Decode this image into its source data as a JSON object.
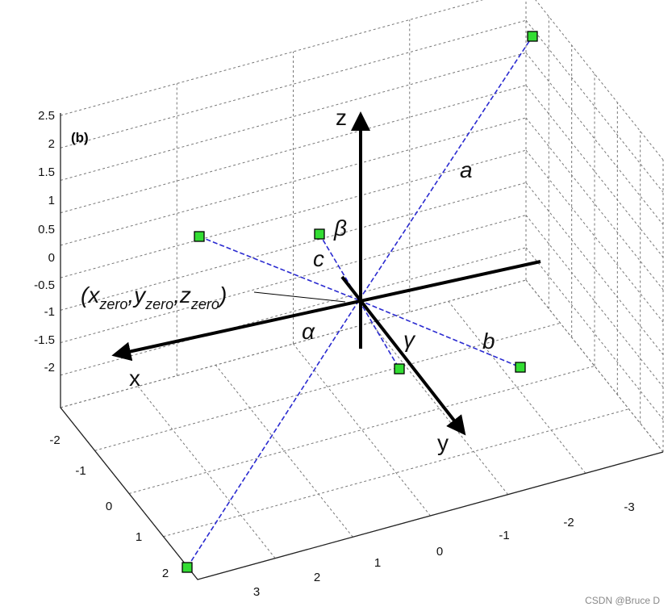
{
  "panel_label": "(b)",
  "z_ticks": [
    "2.5",
    "2",
    "1.5",
    "1",
    "0.5",
    "0",
    "-0.5",
    "-1",
    "-1.5",
    "-2"
  ],
  "left_ticks": [
    "-2",
    "-1",
    "0",
    "1",
    "2"
  ],
  "right_ticks": [
    "3",
    "2",
    "1",
    "0",
    "-1",
    "-2",
    "-3"
  ],
  "axis_labels": {
    "x": "x",
    "y": "y",
    "z": "z"
  },
  "segment_labels": {
    "a": "a",
    "b": "b",
    "c": "c"
  },
  "angle_labels": {
    "alpha": "α",
    "beta": "β",
    "gamma": "γ"
  },
  "origin_label": {
    "open": "(",
    "x": "x",
    "y": "y",
    "z": "z",
    "sub": "zero",
    "sep": ",",
    "close": ")"
  },
  "watermark": "CSDN @Bruce D"
}
